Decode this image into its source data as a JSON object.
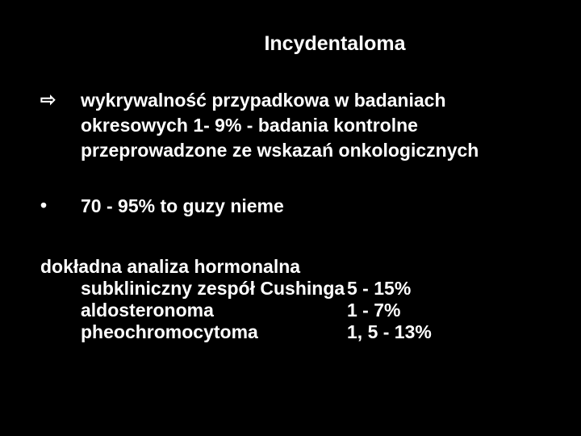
{
  "slide": {
    "title": "Incydentaloma",
    "background_color": "#000000",
    "text_color": "#ffffff",
    "font_family": "Arial",
    "font_weight": "bold",
    "title_fontsize": 25,
    "body_fontsize": 23,
    "bullets": [
      {
        "marker": "⇨",
        "text": "wykrywalność przypadkowa w badaniach okresowych 1- 9% - badania kontrolne przeprowadzone ze wskazań onkologicznych"
      },
      {
        "marker": "•",
        "text": "70 - 95% to guzy nieme"
      }
    ],
    "hormonal": {
      "heading": "dokładna analiza hormonalna",
      "items": [
        {
          "label": "subkliniczny zespół Cushinga",
          "value": " 5 - 15%"
        },
        {
          "label": "aldosteronoma",
          "value": " 1 - 7%"
        },
        {
          "label": "pheochromocytoma",
          "value": "1, 5 - 13%"
        }
      ]
    }
  }
}
